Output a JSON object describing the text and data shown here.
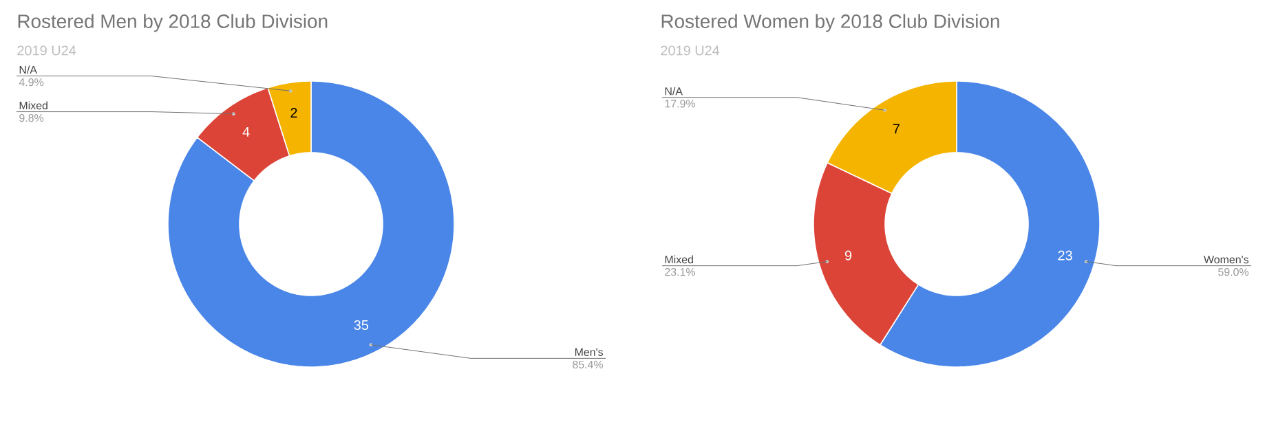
{
  "chart_data": [
    {
      "type": "donut",
      "title": "Rostered Men by 2018 Club Division",
      "subtitle": "2019 U24",
      "categories": [
        "Men's",
        "Mixed",
        "N/A"
      ],
      "values": [
        35,
        4,
        2
      ],
      "colors": [
        "#4a86e8",
        "#db4437",
        "#f4b400"
      ],
      "data_labels": true,
      "annotations": [
        "85.4%",
        "9.8%",
        "4.9%"
      ]
    },
    {
      "type": "donut",
      "title": "Rostered Women by 2018 Club Division",
      "subtitle": "2019 U24",
      "categories": [
        "Women's",
        "Mixed",
        "N/A"
      ],
      "values": [
        23,
        9,
        7
      ],
      "colors": [
        "#4a86e8",
        "#db4437",
        "#f4b400"
      ],
      "data_labels": true,
      "annotations": [
        "59.0%",
        "23.1%",
        "17.9%"
      ]
    }
  ]
}
